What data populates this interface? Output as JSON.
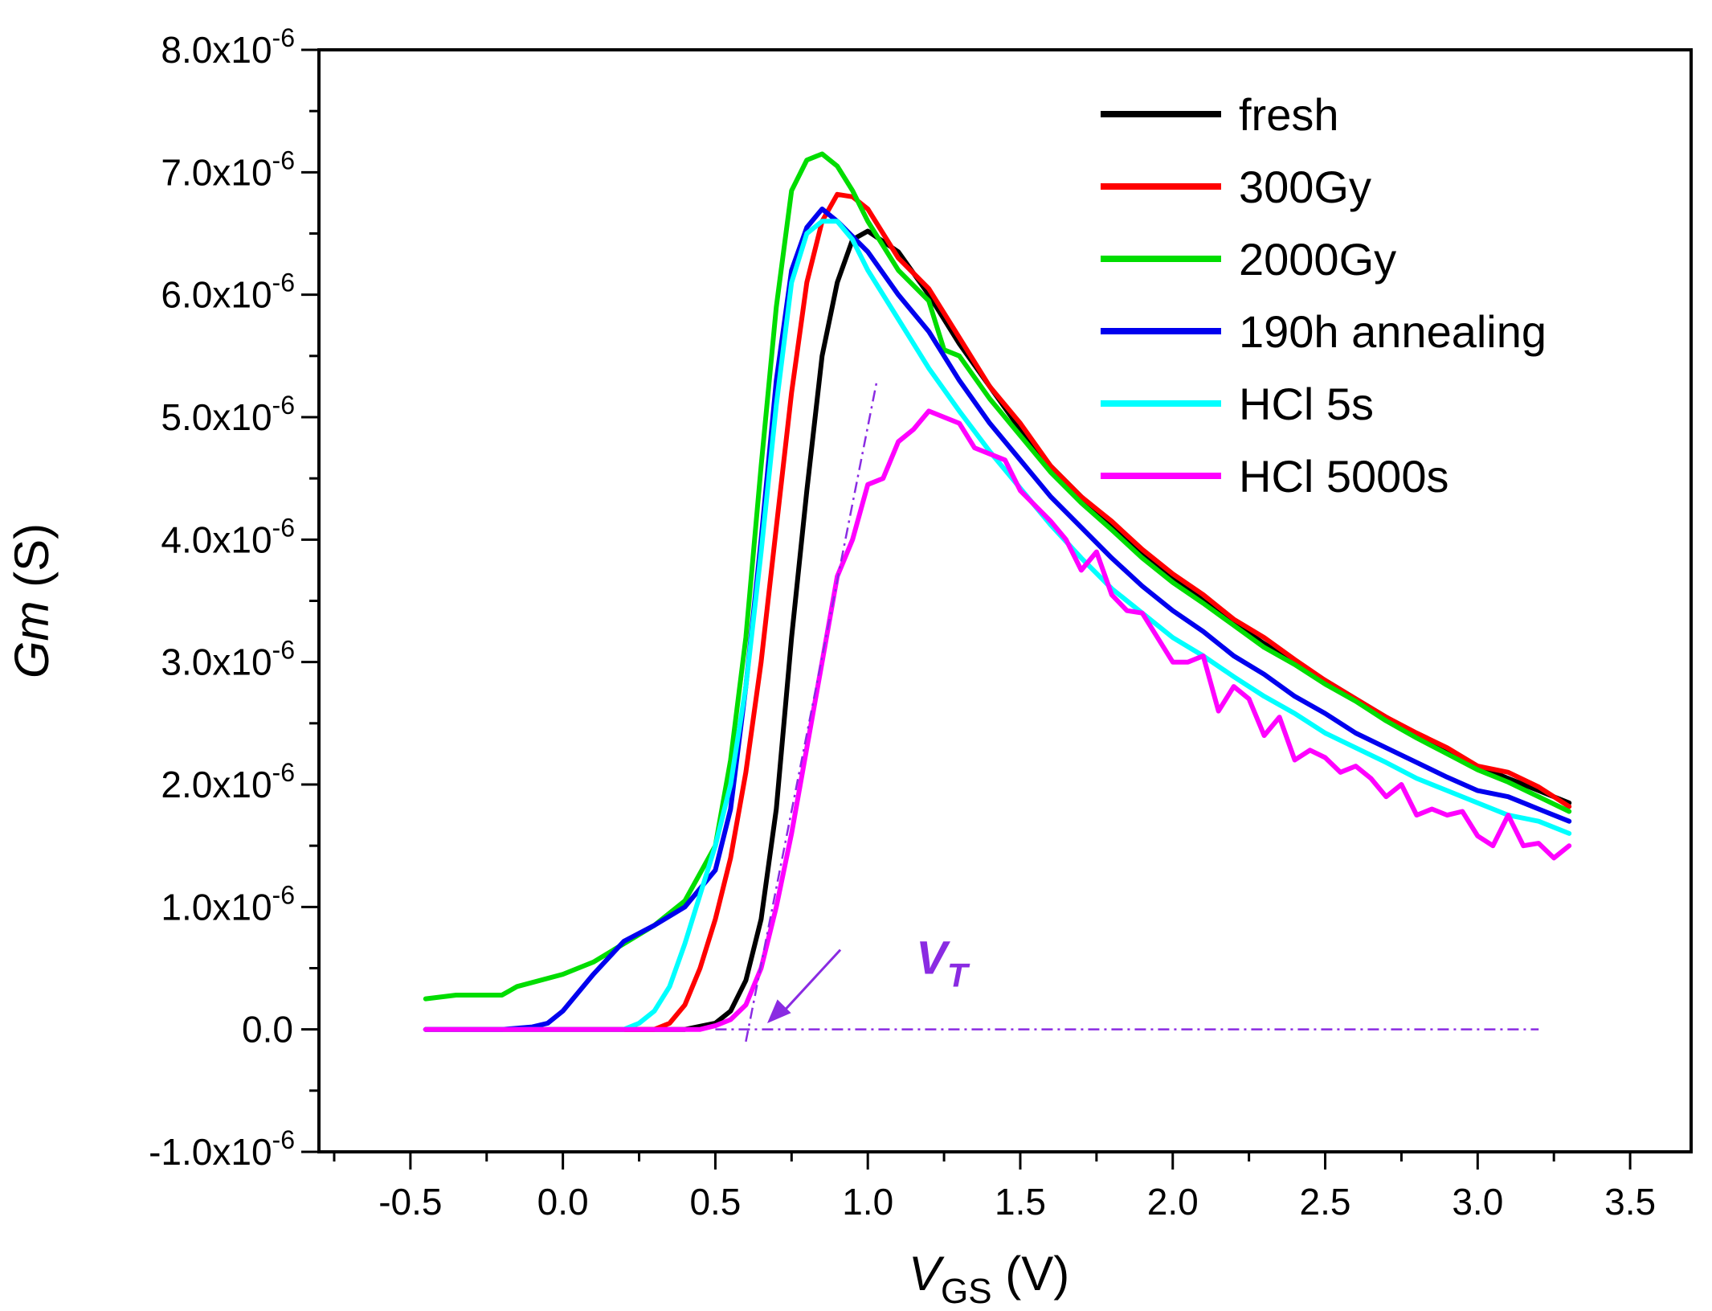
{
  "chart_data": {
    "type": "line",
    "xlabel_main": "V",
    "xlabel_sub": "GS",
    "xlabel_unit": " (V)",
    "ylabel_main": "Gm",
    "ylabel_unit": " (S)",
    "xlim": [
      -0.8,
      3.7
    ],
    "ylim": [
      -1e-06,
      8e-06
    ],
    "x_ticks": [
      {
        "v": -0.5,
        "label": "-0.5"
      },
      {
        "v": 0.0,
        "label": "0.0"
      },
      {
        "v": 0.5,
        "label": "0.5"
      },
      {
        "v": 1.0,
        "label": "1.0"
      },
      {
        "v": 1.5,
        "label": "1.5"
      },
      {
        "v": 2.0,
        "label": "2.0"
      },
      {
        "v": 2.5,
        "label": "2.5"
      },
      {
        "v": 3.0,
        "label": "3.0"
      },
      {
        "v": 3.5,
        "label": "3.5"
      }
    ],
    "y_ticks": [
      {
        "v": 8e-06,
        "mant": "8.0x10",
        "exp": "-6"
      },
      {
        "v": 7e-06,
        "mant": "7.0x10",
        "exp": "-6"
      },
      {
        "v": 6e-06,
        "mant": "6.0x10",
        "exp": "-6"
      },
      {
        "v": 5e-06,
        "mant": "5.0x10",
        "exp": "-6"
      },
      {
        "v": 4e-06,
        "mant": "4.0x10",
        "exp": "-6"
      },
      {
        "v": 3e-06,
        "mant": "3.0x10",
        "exp": "-6"
      },
      {
        "v": 2e-06,
        "mant": "2.0x10",
        "exp": "-6"
      },
      {
        "v": 1e-06,
        "mant": "1.0x10",
        "exp": "-6"
      },
      {
        "v": 0.0,
        "mant": "0.0",
        "exp": ""
      },
      {
        "v": -1e-06,
        "mant": "-1.0x10",
        "exp": "-6"
      }
    ],
    "legend_position": "top-right",
    "series": [
      {
        "name": "fresh",
        "color": "#000000",
        "points": [
          [
            -0.45,
            0
          ],
          [
            0.4,
            0
          ],
          [
            0.5,
            5e-08
          ],
          [
            0.55,
            1.5e-07
          ],
          [
            0.6,
            4e-07
          ],
          [
            0.65,
            9e-07
          ],
          [
            0.7,
            1.8e-06
          ],
          [
            0.75,
            3.2e-06
          ],
          [
            0.8,
            4.4e-06
          ],
          [
            0.85,
            5.5e-06
          ],
          [
            0.9,
            6.1e-06
          ],
          [
            0.95,
            6.45e-06
          ],
          [
            1.0,
            6.52e-06
          ],
          [
            1.1,
            6.35e-06
          ],
          [
            1.2,
            6e-06
          ],
          [
            1.3,
            5.6e-06
          ],
          [
            1.4,
            5.25e-06
          ],
          [
            1.5,
            4.9e-06
          ],
          [
            1.6,
            4.6e-06
          ],
          [
            1.7,
            4.35e-06
          ],
          [
            1.8,
            4.12e-06
          ],
          [
            1.9,
            3.9e-06
          ],
          [
            2.0,
            3.7e-06
          ],
          [
            2.1,
            3.5e-06
          ],
          [
            2.2,
            3.32e-06
          ],
          [
            2.3,
            3.15e-06
          ],
          [
            2.4,
            3e-06
          ],
          [
            2.5,
            2.85e-06
          ],
          [
            2.6,
            2.7e-06
          ],
          [
            2.7,
            2.55e-06
          ],
          [
            2.8,
            2.4e-06
          ],
          [
            2.9,
            2.28e-06
          ],
          [
            3.0,
            2.15e-06
          ],
          [
            3.1,
            2.05e-06
          ],
          [
            3.2,
            1.95e-06
          ],
          [
            3.3,
            1.85e-06
          ]
        ]
      },
      {
        "name": "300Gy",
        "color": "#ff0000",
        "points": [
          [
            -0.45,
            0
          ],
          [
            0.3,
            0
          ],
          [
            0.35,
            5e-08
          ],
          [
            0.4,
            2e-07
          ],
          [
            0.45,
            5e-07
          ],
          [
            0.5,
            9e-07
          ],
          [
            0.55,
            1.4e-06
          ],
          [
            0.6,
            2.1e-06
          ],
          [
            0.65,
            3e-06
          ],
          [
            0.7,
            4.1e-06
          ],
          [
            0.75,
            5.2e-06
          ],
          [
            0.8,
            6.1e-06
          ],
          [
            0.85,
            6.6e-06
          ],
          [
            0.9,
            6.82e-06
          ],
          [
            0.95,
            6.8e-06
          ],
          [
            1.0,
            6.7e-06
          ],
          [
            1.1,
            6.3e-06
          ],
          [
            1.2,
            6.05e-06
          ],
          [
            1.3,
            5.65e-06
          ],
          [
            1.4,
            5.25e-06
          ],
          [
            1.5,
            4.95e-06
          ],
          [
            1.6,
            4.6e-06
          ],
          [
            1.7,
            4.35e-06
          ],
          [
            1.8,
            4.15e-06
          ],
          [
            1.9,
            3.92e-06
          ],
          [
            2.0,
            3.72e-06
          ],
          [
            2.1,
            3.55e-06
          ],
          [
            2.2,
            3.35e-06
          ],
          [
            2.3,
            3.2e-06
          ],
          [
            2.4,
            3.02e-06
          ],
          [
            2.5,
            2.85e-06
          ],
          [
            2.6,
            2.7e-06
          ],
          [
            2.7,
            2.55e-06
          ],
          [
            2.8,
            2.42e-06
          ],
          [
            2.9,
            2.3e-06
          ],
          [
            3.0,
            2.15e-06
          ],
          [
            3.1,
            2.1e-06
          ],
          [
            3.2,
            1.98e-06
          ],
          [
            3.3,
            1.82e-06
          ]
        ]
      },
      {
        "name": "2000Gy",
        "color": "#00dd00",
        "points": [
          [
            -0.45,
            2.5e-07
          ],
          [
            -0.35,
            2.8e-07
          ],
          [
            -0.2,
            2.8e-07
          ],
          [
            -0.15,
            3.5e-07
          ],
          [
            0.0,
            4.5e-07
          ],
          [
            0.1,
            5.5e-07
          ],
          [
            0.2,
            7e-07
          ],
          [
            0.3,
            8.5e-07
          ],
          [
            0.4,
            1.05e-06
          ],
          [
            0.5,
            1.5e-06
          ],
          [
            0.55,
            2.2e-06
          ],
          [
            0.6,
            3.2e-06
          ],
          [
            0.65,
            4.6e-06
          ],
          [
            0.7,
            5.9e-06
          ],
          [
            0.75,
            6.85e-06
          ],
          [
            0.8,
            7.1e-06
          ],
          [
            0.85,
            7.15e-06
          ],
          [
            0.9,
            7.05e-06
          ],
          [
            0.95,
            6.85e-06
          ],
          [
            1.0,
            6.6e-06
          ],
          [
            1.1,
            6.2e-06
          ],
          [
            1.2,
            5.95e-06
          ],
          [
            1.25,
            5.55e-06
          ],
          [
            1.3,
            5.5e-06
          ],
          [
            1.4,
            5.15e-06
          ],
          [
            1.5,
            4.85e-06
          ],
          [
            1.6,
            4.55e-06
          ],
          [
            1.7,
            4.3e-06
          ],
          [
            1.8,
            4.08e-06
          ],
          [
            1.9,
            3.85e-06
          ],
          [
            2.0,
            3.65e-06
          ],
          [
            2.1,
            3.48e-06
          ],
          [
            2.2,
            3.3e-06
          ],
          [
            2.3,
            3.12e-06
          ],
          [
            2.4,
            2.98e-06
          ],
          [
            2.5,
            2.82e-06
          ],
          [
            2.6,
            2.68e-06
          ],
          [
            2.7,
            2.52e-06
          ],
          [
            2.8,
            2.38e-06
          ],
          [
            2.9,
            2.25e-06
          ],
          [
            3.0,
            2.12e-06
          ],
          [
            3.1,
            2.02e-06
          ],
          [
            3.2,
            1.9e-06
          ],
          [
            3.3,
            1.78e-06
          ]
        ]
      },
      {
        "name": "190h annealing",
        "color": "#0000ee",
        "points": [
          [
            -0.45,
            0
          ],
          [
            -0.2,
            0
          ],
          [
            -0.1,
            2e-08
          ],
          [
            -0.05,
            5e-08
          ],
          [
            0.0,
            1.5e-07
          ],
          [
            0.1,
            4.5e-07
          ],
          [
            0.2,
            7.2e-07
          ],
          [
            0.3,
            8.5e-07
          ],
          [
            0.4,
            1e-06
          ],
          [
            0.5,
            1.3e-06
          ],
          [
            0.55,
            1.8e-06
          ],
          [
            0.6,
            2.8e-06
          ],
          [
            0.65,
            4e-06
          ],
          [
            0.7,
            5.3e-06
          ],
          [
            0.75,
            6.2e-06
          ],
          [
            0.8,
            6.55e-06
          ],
          [
            0.85,
            6.7e-06
          ],
          [
            0.9,
            6.6e-06
          ],
          [
            1.0,
            6.35e-06
          ],
          [
            1.1,
            6e-06
          ],
          [
            1.2,
            5.7e-06
          ],
          [
            1.3,
            5.3e-06
          ],
          [
            1.4,
            4.95e-06
          ],
          [
            1.5,
            4.65e-06
          ],
          [
            1.6,
            4.35e-06
          ],
          [
            1.7,
            4.1e-06
          ],
          [
            1.8,
            3.85e-06
          ],
          [
            1.9,
            3.62e-06
          ],
          [
            2.0,
            3.42e-06
          ],
          [
            2.1,
            3.25e-06
          ],
          [
            2.2,
            3.05e-06
          ],
          [
            2.3,
            2.9e-06
          ],
          [
            2.4,
            2.72e-06
          ],
          [
            2.5,
            2.58e-06
          ],
          [
            2.6,
            2.42e-06
          ],
          [
            2.7,
            2.3e-06
          ],
          [
            2.8,
            2.18e-06
          ],
          [
            2.9,
            2.06e-06
          ],
          [
            3.0,
            1.95e-06
          ],
          [
            3.1,
            1.9e-06
          ],
          [
            3.2,
            1.8e-06
          ],
          [
            3.3,
            1.7e-06
          ]
        ]
      },
      {
        "name": "HCl 5s",
        "color": "#00ffff",
        "points": [
          [
            -0.45,
            0
          ],
          [
            0.2,
            0
          ],
          [
            0.25,
            5e-08
          ],
          [
            0.3,
            1.5e-07
          ],
          [
            0.35,
            3.5e-07
          ],
          [
            0.4,
            7e-07
          ],
          [
            0.45,
            1.1e-06
          ],
          [
            0.5,
            1.5e-06
          ],
          [
            0.55,
            2e-06
          ],
          [
            0.6,
            2.8e-06
          ],
          [
            0.65,
            3.9e-06
          ],
          [
            0.7,
            5.1e-06
          ],
          [
            0.75,
            6.1e-06
          ],
          [
            0.8,
            6.5e-06
          ],
          [
            0.85,
            6.6e-06
          ],
          [
            0.9,
            6.6e-06
          ],
          [
            0.95,
            6.45e-06
          ],
          [
            1.0,
            6.2e-06
          ],
          [
            1.1,
            5.8e-06
          ],
          [
            1.2,
            5.4e-06
          ],
          [
            1.3,
            5.05e-06
          ],
          [
            1.4,
            4.72e-06
          ],
          [
            1.5,
            4.42e-06
          ],
          [
            1.6,
            4.12e-06
          ],
          [
            1.7,
            3.85e-06
          ],
          [
            1.8,
            3.6e-06
          ],
          [
            1.9,
            3.4e-06
          ],
          [
            2.0,
            3.2e-06
          ],
          [
            2.1,
            3.05e-06
          ],
          [
            2.2,
            2.88e-06
          ],
          [
            2.3,
            2.72e-06
          ],
          [
            2.4,
            2.58e-06
          ],
          [
            2.5,
            2.42e-06
          ],
          [
            2.6,
            2.3e-06
          ],
          [
            2.7,
            2.18e-06
          ],
          [
            2.8,
            2.05e-06
          ],
          [
            2.9,
            1.95e-06
          ],
          [
            3.0,
            1.85e-06
          ],
          [
            3.1,
            1.75e-06
          ],
          [
            3.2,
            1.7e-06
          ],
          [
            3.3,
            1.6e-06
          ]
        ]
      },
      {
        "name": "HCl 5000s",
        "color": "#ff00ff",
        "points": [
          [
            -0.45,
            0
          ],
          [
            0.45,
            0
          ],
          [
            0.5,
            3e-08
          ],
          [
            0.55,
            8e-08
          ],
          [
            0.6,
            2e-07
          ],
          [
            0.65,
            5e-07
          ],
          [
            0.7,
            1e-06
          ],
          [
            0.75,
            1.6e-06
          ],
          [
            0.8,
            2.3e-06
          ],
          [
            0.85,
            3e-06
          ],
          [
            0.9,
            3.7e-06
          ],
          [
            0.95,
            4e-06
          ],
          [
            1.0,
            4.45e-06
          ],
          [
            1.05,
            4.5e-06
          ],
          [
            1.1,
            4.8e-06
          ],
          [
            1.15,
            4.9e-06
          ],
          [
            1.2,
            5.05e-06
          ],
          [
            1.3,
            4.95e-06
          ],
          [
            1.35,
            4.75e-06
          ],
          [
            1.45,
            4.65e-06
          ],
          [
            1.5,
            4.4e-06
          ],
          [
            1.6,
            4.15e-06
          ],
          [
            1.65,
            4e-06
          ],
          [
            1.7,
            3.75e-06
          ],
          [
            1.75,
            3.9e-06
          ],
          [
            1.8,
            3.55e-06
          ],
          [
            1.85,
            3.42e-06
          ],
          [
            1.9,
            3.4e-06
          ],
          [
            1.95,
            3.2e-06
          ],
          [
            2.0,
            3e-06
          ],
          [
            2.05,
            3e-06
          ],
          [
            2.1,
            3.05e-06
          ],
          [
            2.15,
            2.6e-06
          ],
          [
            2.2,
            2.8e-06
          ],
          [
            2.25,
            2.7e-06
          ],
          [
            2.3,
            2.4e-06
          ],
          [
            2.35,
            2.55e-06
          ],
          [
            2.4,
            2.2e-06
          ],
          [
            2.45,
            2.28e-06
          ],
          [
            2.5,
            2.22e-06
          ],
          [
            2.55,
            2.1e-06
          ],
          [
            2.6,
            2.15e-06
          ],
          [
            2.65,
            2.05e-06
          ],
          [
            2.7,
            1.9e-06
          ],
          [
            2.75,
            2e-06
          ],
          [
            2.8,
            1.75e-06
          ],
          [
            2.85,
            1.8e-06
          ],
          [
            2.9,
            1.75e-06
          ],
          [
            2.95,
            1.78e-06
          ],
          [
            3.0,
            1.58e-06
          ],
          [
            3.05,
            1.5e-06
          ],
          [
            3.1,
            1.75e-06
          ],
          [
            3.15,
            1.5e-06
          ],
          [
            3.2,
            1.52e-06
          ],
          [
            3.25,
            1.4e-06
          ],
          [
            3.3,
            1.5e-06
          ]
        ]
      }
    ],
    "annotation": {
      "text": "V",
      "subscript": "T",
      "color": "#8a2be2",
      "x0_line": [
        0.5,
        3.2
      ],
      "tangent": [
        [
          0.6,
          -1e-07
        ],
        [
          1.03,
          5.3e-06
        ]
      ],
      "arrow_from": [
        0.91,
        6.5e-07
      ],
      "arrow_to": [
        0.67,
        5e-08
      ],
      "label_at": [
        1.0,
        6.5e-07
      ]
    }
  }
}
